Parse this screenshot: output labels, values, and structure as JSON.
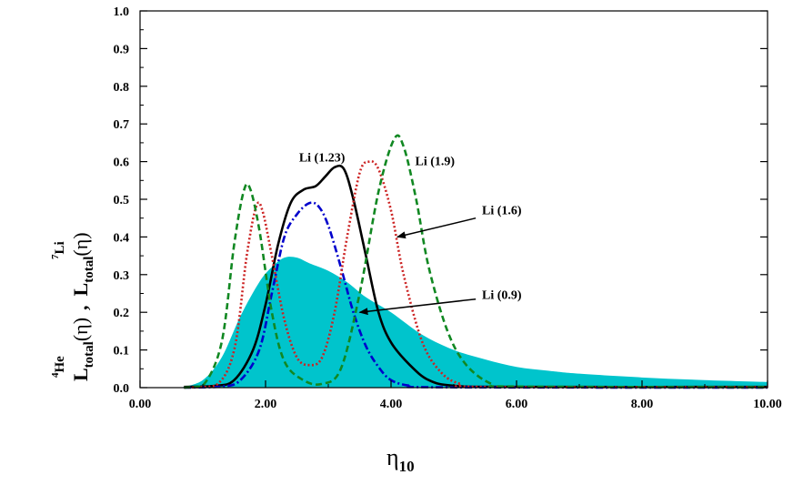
{
  "chart_data": {
    "type": "line",
    "title": "",
    "xlabel": {
      "main": "η",
      "sub": "10"
    },
    "ylabel": {
      "he_sup": "4",
      "he_element": "He",
      "he_L": "L",
      "he_sub": "total",
      "he_arg": "(η)",
      "comma": ",",
      "li_sup": "7",
      "li_element": "Li",
      "li_L": "L",
      "li_sub": "total",
      "li_arg": "(η)"
    },
    "xlim": [
      0,
      10
    ],
    "ylim": [
      0,
      1
    ],
    "x_ticks": [
      "0.00",
      "2.00",
      "4.00",
      "6.00",
      "8.00",
      "10.00"
    ],
    "y_ticks": [
      "0.0",
      "0.1",
      "0.2",
      "0.3",
      "0.4",
      "0.5",
      "0.6",
      "0.7",
      "0.8",
      "0.9",
      "1.0"
    ],
    "grid": false,
    "colors": {
      "he_fill": "#00c4cc",
      "li_123": "#000000",
      "li_09": "#0000cc",
      "li_16": "#cc2222",
      "li_19": "#118822"
    },
    "series": [
      {
        "name": "",
        "style": "filled-area",
        "color": "#00c4cc",
        "points": [
          [
            0.65,
            0
          ],
          [
            1.0,
            0.02
          ],
          [
            1.3,
            0.08
          ],
          [
            1.6,
            0.19
          ],
          [
            1.9,
            0.28
          ],
          [
            2.1,
            0.32
          ],
          [
            2.3,
            0.345
          ],
          [
            2.5,
            0.345
          ],
          [
            2.7,
            0.33
          ],
          [
            3.0,
            0.31
          ],
          [
            3.3,
            0.28
          ],
          [
            3.6,
            0.24
          ],
          [
            4.0,
            0.2
          ],
          [
            4.5,
            0.14
          ],
          [
            5.0,
            0.1
          ],
          [
            5.5,
            0.075
          ],
          [
            6.0,
            0.055
          ],
          [
            6.5,
            0.045
          ],
          [
            7.0,
            0.037
          ],
          [
            8.0,
            0.027
          ],
          [
            9.0,
            0.02
          ],
          [
            10.0,
            0.015
          ]
        ]
      },
      {
        "name": "Li (1.23)",
        "style": "solid",
        "color": "#000000",
        "points": [
          [
            0.7,
            0.002
          ],
          [
            1.2,
            0.005
          ],
          [
            1.5,
            0.02
          ],
          [
            1.8,
            0.1
          ],
          [
            2.0,
            0.22
          ],
          [
            2.2,
            0.38
          ],
          [
            2.4,
            0.49
          ],
          [
            2.6,
            0.525
          ],
          [
            2.8,
            0.535
          ],
          [
            2.95,
            0.56
          ],
          [
            3.1,
            0.585
          ],
          [
            3.25,
            0.58
          ],
          [
            3.4,
            0.5
          ],
          [
            3.6,
            0.35
          ],
          [
            3.8,
            0.2
          ],
          [
            4.0,
            0.12
          ],
          [
            4.3,
            0.06
          ],
          [
            4.6,
            0.02
          ],
          [
            5.0,
            0.005
          ],
          [
            6.0,
            0.002
          ],
          [
            10.0,
            0.002
          ]
        ]
      },
      {
        "name": "Li (0.9)",
        "style": "dashdot",
        "color": "#0000cc",
        "points": [
          [
            0.7,
            0
          ],
          [
            1.3,
            0.003
          ],
          [
            1.6,
            0.02
          ],
          [
            1.9,
            0.1
          ],
          [
            2.1,
            0.25
          ],
          [
            2.3,
            0.4
          ],
          [
            2.5,
            0.46
          ],
          [
            2.7,
            0.49
          ],
          [
            2.85,
            0.48
          ],
          [
            3.0,
            0.43
          ],
          [
            3.2,
            0.32
          ],
          [
            3.4,
            0.2
          ],
          [
            3.6,
            0.11
          ],
          [
            3.8,
            0.055
          ],
          [
            4.0,
            0.02
          ],
          [
            4.3,
            0.005
          ],
          [
            4.8,
            0.001
          ],
          [
            10.0,
            0
          ]
        ]
      },
      {
        "name": "Li (1.6)",
        "style": "dotted",
        "color": "#cc2222",
        "points": [
          [
            0.7,
            0
          ],
          [
            1.2,
            0.005
          ],
          [
            1.5,
            0.1
          ],
          [
            1.7,
            0.35
          ],
          [
            1.85,
            0.48
          ],
          [
            1.95,
            0.47
          ],
          [
            2.1,
            0.35
          ],
          [
            2.3,
            0.18
          ],
          [
            2.5,
            0.08
          ],
          [
            2.7,
            0.06
          ],
          [
            2.9,
            0.08
          ],
          [
            3.1,
            0.2
          ],
          [
            3.3,
            0.4
          ],
          [
            3.5,
            0.57
          ],
          [
            3.65,
            0.6
          ],
          [
            3.8,
            0.58
          ],
          [
            4.0,
            0.47
          ],
          [
            4.2,
            0.3
          ],
          [
            4.5,
            0.12
          ],
          [
            4.8,
            0.04
          ],
          [
            5.1,
            0.01
          ],
          [
            5.5,
            0.002
          ],
          [
            10.0,
            0.001
          ]
        ]
      },
      {
        "name": "Li (1.9)",
        "style": "dashed",
        "color": "#118822",
        "points": [
          [
            0.7,
            0
          ],
          [
            1.0,
            0.005
          ],
          [
            1.3,
            0.12
          ],
          [
            1.5,
            0.38
          ],
          [
            1.65,
            0.52
          ],
          [
            1.75,
            0.53
          ],
          [
            1.9,
            0.42
          ],
          [
            2.1,
            0.2
          ],
          [
            2.3,
            0.07
          ],
          [
            2.6,
            0.02
          ],
          [
            2.9,
            0.01
          ],
          [
            3.2,
            0.05
          ],
          [
            3.5,
            0.25
          ],
          [
            3.8,
            0.52
          ],
          [
            4.05,
            0.66
          ],
          [
            4.2,
            0.64
          ],
          [
            4.4,
            0.5
          ],
          [
            4.6,
            0.32
          ],
          [
            4.9,
            0.15
          ],
          [
            5.2,
            0.06
          ],
          [
            5.6,
            0.01
          ],
          [
            6.0,
            0.003
          ],
          [
            10.0,
            0.001
          ]
        ]
      }
    ],
    "annotations": [
      {
        "text": "Li (1.23)",
        "x": 2.9,
        "y": 0.6,
        "arrow": false
      },
      {
        "text": "Li (1.9)",
        "x": 4.7,
        "y": 0.59,
        "arrow": false
      },
      {
        "text": "Li (1.6)",
        "x": 5.45,
        "y": 0.46,
        "arrow": true,
        "arrow_from": [
          5.35,
          0.45
        ],
        "arrow_to": [
          4.1,
          0.4
        ]
      },
      {
        "text": "Li (0.9)",
        "x": 5.45,
        "y": 0.235,
        "arrow": true,
        "arrow_from": [
          5.35,
          0.235
        ],
        "arrow_to": [
          3.5,
          0.2
        ]
      }
    ]
  }
}
